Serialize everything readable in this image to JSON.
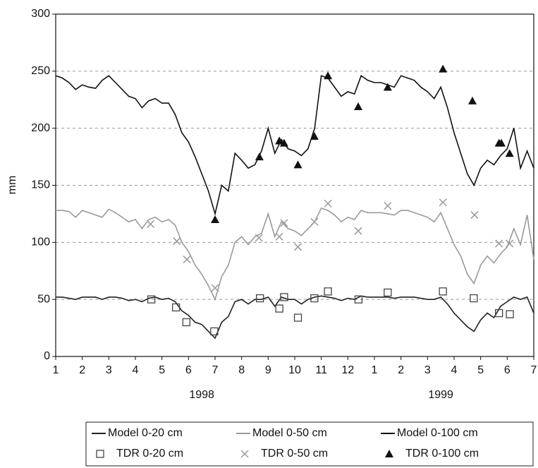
{
  "chart_data": {
    "type": "line",
    "y_label": "mm",
    "annotations": [
      {
        "text": "1998",
        "x": 6.5
      },
      {
        "text": "1999",
        "x": 15.5
      }
    ],
    "xlim": [
      1,
      19
    ],
    "xticks": [
      1,
      2,
      3,
      4,
      5,
      6,
      7,
      8,
      9,
      10,
      11,
      12,
      {
        "value": 13,
        "label": "1"
      },
      {
        "value": 14,
        "label": "2"
      },
      {
        "value": 15,
        "label": "3"
      },
      {
        "value": 16,
        "label": "4"
      },
      {
        "value": 17,
        "label": "5"
      },
      {
        "value": 18,
        "label": "6"
      },
      {
        "value": 19,
        "label": "7"
      }
    ],
    "ylim": [
      0,
      300
    ],
    "yticks": [
      0,
      50,
      100,
      150,
      200,
      250,
      300
    ],
    "grid": true,
    "x": [
      1,
      1.25,
      1.5,
      1.75,
      2,
      2.25,
      2.5,
      2.75,
      3,
      3.25,
      3.5,
      3.75,
      4,
      4.25,
      4.5,
      4.75,
      5,
      5.25,
      5.5,
      5.75,
      6,
      6.25,
      6.5,
      6.75,
      7,
      7.25,
      7.5,
      7.75,
      8,
      8.25,
      8.5,
      8.75,
      9,
      9.25,
      9.5,
      9.75,
      10,
      10.25,
      10.5,
      10.75,
      11,
      11.25,
      11.5,
      11.75,
      12,
      12.25,
      12.5,
      12.75,
      13,
      13.25,
      13.5,
      13.75,
      14,
      14.25,
      14.5,
      14.75,
      15,
      15.25,
      15.5,
      15.75,
      16,
      16.25,
      16.5,
      16.75,
      17,
      17.25,
      17.5,
      17.75,
      18,
      18.25,
      18.5,
      18.75,
      19
    ],
    "series": [
      {
        "name": "Model 0-20 cm",
        "type": "line",
        "color": "#222222",
        "values": [
          52,
          52,
          51,
          50,
          52,
          52,
          52,
          50,
          52,
          52,
          51,
          49,
          50,
          48,
          51,
          52,
          50,
          51,
          48,
          40,
          36,
          30,
          28,
          22,
          16,
          30,
          35,
          48,
          50,
          46,
          50,
          50,
          52,
          44,
          52,
          50,
          50,
          46,
          50,
          52,
          53,
          52,
          51,
          49,
          51,
          50,
          53,
          52,
          52,
          52,
          52,
          51,
          52,
          52,
          52,
          51,
          50,
          50,
          52,
          46,
          38,
          32,
          26,
          22,
          32,
          38,
          34,
          44,
          48,
          52,
          50,
          52,
          38
        ]
      },
      {
        "name": "Model 0-50 cm",
        "type": "line",
        "color": "#9a9a9a",
        "values": [
          128,
          128,
          127,
          122,
          128,
          126,
          124,
          122,
          129,
          126,
          122,
          118,
          120,
          112,
          120,
          122,
          118,
          120,
          115,
          100,
          92,
          80,
          72,
          62,
          50,
          70,
          80,
          100,
          105,
          98,
          105,
          108,
          125,
          105,
          118,
          112,
          110,
          106,
          112,
          118,
          130,
          128,
          124,
          118,
          122,
          120,
          128,
          126,
          126,
          126,
          125,
          124,
          128,
          128,
          126,
          124,
          122,
          118,
          126,
          112,
          98,
          88,
          72,
          64,
          80,
          88,
          82,
          90,
          96,
          112,
          98,
          124,
          85
        ]
      },
      {
        "name": "Model 0-100 cm",
        "type": "line",
        "color": "#111111",
        "values": [
          246,
          244,
          240,
          234,
          238,
          236,
          235,
          242,
          246,
          240,
          234,
          228,
          226,
          218,
          224,
          226,
          222,
          222,
          212,
          196,
          188,
          175,
          160,
          145,
          125,
          150,
          145,
          178,
          172,
          165,
          168,
          180,
          200,
          178,
          190,
          182,
          180,
          176,
          182,
          200,
          246,
          244,
          236,
          228,
          232,
          230,
          246,
          242,
          240,
          240,
          238,
          236,
          246,
          244,
          242,
          236,
          232,
          226,
          236,
          218,
          196,
          178,
          160,
          150,
          165,
          172,
          168,
          176,
          182,
          200,
          165,
          180,
          165
        ]
      },
      {
        "name": "TDR 0-20 cm",
        "type": "scatter",
        "marker": "square",
        "color": "#444444",
        "x": [
          4.6,
          5.53,
          5.92,
          6.97,
          8.69,
          9.42,
          9.6,
          10.12,
          10.74,
          11.25,
          12.4,
          13.5,
          15.58,
          16.74,
          17.69,
          18.1
        ],
        "values": [
          50,
          43,
          30,
          22,
          51,
          42,
          52,
          34,
          51,
          57,
          50,
          56,
          57,
          51,
          38,
          37
        ]
      },
      {
        "name": "TDR 0-50 cm",
        "type": "scatter",
        "marker": "cross",
        "color": "#999999",
        "x": [
          4.57,
          5.56,
          5.94,
          7,
          8.65,
          9.42,
          9.6,
          10.12,
          10.74,
          11.25,
          12.39,
          13.5,
          15.58,
          16.77,
          17.69,
          18.09
        ],
        "values": [
          116,
          101,
          85,
          60,
          104,
          105,
          117,
          96,
          118,
          134,
          110,
          132,
          135,
          124,
          99,
          99
        ]
      },
      {
        "name": "TDR 0-100 cm",
        "type": "scatter",
        "marker": "triangle",
        "color": "#111111",
        "x": [
          7,
          8.67,
          9.42,
          9.6,
          10.12,
          10.74,
          11.25,
          12.39,
          13.5,
          15.58,
          16.69,
          17.69,
          17.78,
          18.09
        ],
        "values": [
          120,
          175,
          189,
          187,
          168,
          193,
          246,
          219,
          236,
          252,
          224,
          187,
          187,
          178
        ]
      }
    ]
  }
}
